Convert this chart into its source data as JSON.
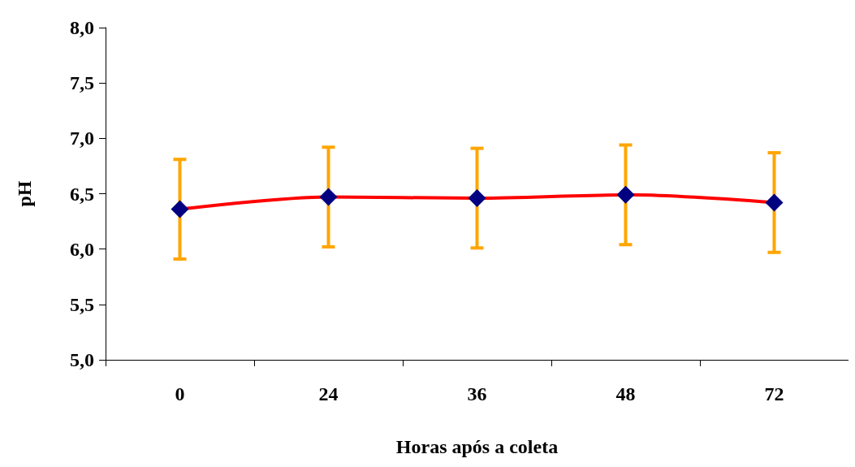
{
  "chart_data": {
    "type": "line",
    "xlabel": "Horas após a coleta",
    "ylabel": "pH",
    "categories": [
      "0",
      "24",
      "36",
      "48",
      "72"
    ],
    "series": [
      {
        "color": "#ff0000",
        "values": [
          6.36,
          6.47,
          6.46,
          6.49,
          6.42
        ],
        "errors": [
          0.45,
          0.45,
          0.45,
          0.45,
          0.45
        ],
        "colors": [
          "#000080",
          "#000080",
          "#000080",
          "#000080",
          "#000080"
        ]
      }
    ],
    "ylim": [
      5.0,
      8.0
    ],
    "yticks": [
      {
        "value": 5.0,
        "label": "5,0"
      },
      {
        "value": 5.5,
        "label": "5,5"
      },
      {
        "value": 6.0,
        "label": "6,0"
      },
      {
        "value": 6.5,
        "label": "6,5"
      },
      {
        "value": 7.0,
        "label": "7,0"
      },
      {
        "value": 7.5,
        "label": "7,5"
      },
      {
        "value": 8.0,
        "label": "8,0"
      }
    ],
    "grid": false,
    "marker": "diamond",
    "line_style": "solid"
  }
}
